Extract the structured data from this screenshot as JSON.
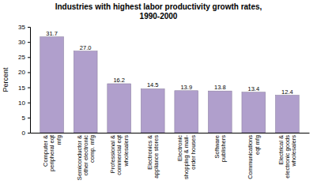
{
  "chart_data": {
    "type": "bar",
    "title": "Industries with highest labor productivity growth rates,\n1990-2000",
    "ylabel": "Percent",
    "categories": [
      "Computer &\nperipheral eqt\nmfg",
      "Semiconductor &\nother electronic\ncomp. mfg",
      "Professional &\ncommercial eqt\nwholesalers",
      "Electronics &\nappliance stores",
      "Electronic\nshopping & mail-\norder houses",
      "Software\npublishers",
      "Communications\neqt mfg",
      "Electrical &\nelectronic goods\nwholesalers"
    ],
    "values": [
      31.7,
      27.0,
      16.2,
      14.5,
      13.9,
      13.8,
      13.4,
      12.4
    ],
    "value_labels": [
      "31.7",
      "27.0",
      "16.2",
      "14.5",
      "13.9",
      "13.8",
      "13.4",
      "12.4"
    ],
    "color": "#b09fcc",
    "ylim": [
      0,
      35
    ],
    "yticks": [
      0,
      5,
      10,
      15,
      20,
      25,
      30,
      35
    ],
    "grid": false,
    "data_labels": true
  }
}
